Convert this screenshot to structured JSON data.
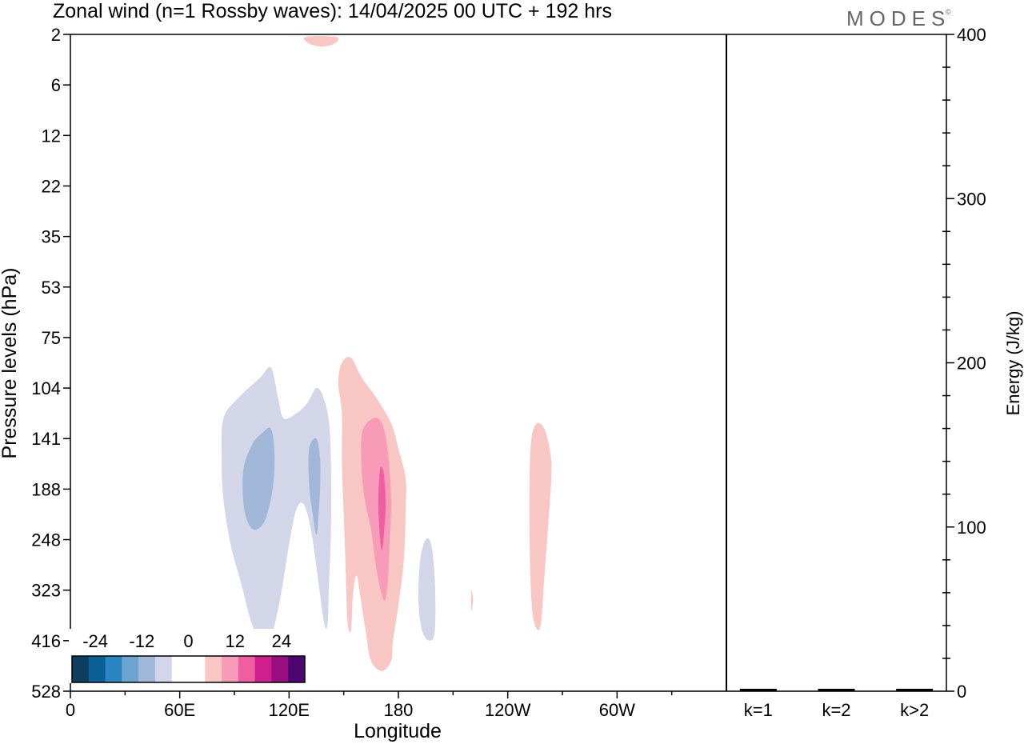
{
  "title": "Zonal wind (n=1 Rossby waves):  14/04/2025  00 UTC  + 192 hrs",
  "logo": "MODES",
  "logo_mark": "©",
  "chart_data": [
    {
      "type": "heatmap",
      "xlabel": "Longitude",
      "ylabel": "Pressure levels (hPa)",
      "x_ticks": [
        {
          "lon": 0,
          "label": "0"
        },
        {
          "lon": 60,
          "label": "60E"
        },
        {
          "lon": 120,
          "label": "120E"
        },
        {
          "lon": 180,
          "label": "180"
        },
        {
          "lon": 240,
          "label": "120W"
        },
        {
          "lon": 300,
          "label": "60W"
        }
      ],
      "xlim": [
        0,
        360
      ],
      "y_levels": [
        2,
        6,
        12,
        22,
        35,
        53,
        75,
        104,
        141,
        188,
        248,
        323,
        416,
        528
      ],
      "y_scale": "level-index",
      "colorbar": {
        "tick_labels": [
          "-24",
          "-12",
          "0",
          "12",
          "24"
        ],
        "tick_values": [
          -24,
          -12,
          0,
          12,
          24
        ],
        "bounds": [
          -30,
          30
        ],
        "colors": [
          "#0d3e5e",
          "#0a5f96",
          "#2a86c0",
          "#6aa4cf",
          "#a0b7d8",
          "#d3d5e8",
          "#ffffff",
          "#ffffff",
          "#f9c7c3",
          "#f79bb8",
          "#ef5fa0",
          "#cf1f8e",
          "#990e7e",
          "#4e0572"
        ],
        "placement": "bottom-left"
      },
      "regions": [
        {
          "name": "neg-outer-main",
          "value": -3,
          "color": "#d3d5e8",
          "outline": [
            [
              84,
              7.6
            ],
            [
              92,
              7.2
            ],
            [
              104,
              6.8
            ],
            [
              110,
              6.6
            ],
            [
              114,
              7.2
            ],
            [
              117,
              7.6
            ],
            [
              124,
              7.5
            ],
            [
              130,
              7.3
            ],
            [
              135,
              7.0
            ],
            [
              139,
              7.2
            ],
            [
              142,
              7.7
            ],
            [
              143,
              8.5
            ],
            [
              143,
              9.8
            ],
            [
              142,
              10.8
            ],
            [
              141,
              11.7
            ],
            [
              139,
              11.6
            ],
            [
              136,
              10.8
            ],
            [
              132,
              9.8
            ],
            [
              128,
              9.3
            ],
            [
              124,
              9.4
            ],
            [
              120,
              10.1
            ],
            [
              115,
              11.2
            ],
            [
              110,
              11.9
            ],
            [
              104,
              12.0
            ],
            [
              99,
              11.6
            ],
            [
              94,
              10.9
            ],
            [
              88,
              10.1
            ],
            [
              84,
              9.2
            ],
            [
              83,
              8.4
            ]
          ]
        },
        {
          "name": "neg-inner-a",
          "value": -9,
          "color": "#a0b7d8",
          "outline": [
            [
              95,
              8.6
            ],
            [
              100,
              8.1
            ],
            [
              105,
              7.9
            ],
            [
              110,
              7.8
            ],
            [
              112,
              8.3
            ],
            [
              111,
              9.0
            ],
            [
              107,
              9.6
            ],
            [
              102,
              9.8
            ],
            [
              98,
              9.7
            ],
            [
              95,
              9.3
            ]
          ]
        },
        {
          "name": "neg-inner-b",
          "value": -9,
          "color": "#a0b7d8",
          "outline": [
            [
              131,
              8.2
            ],
            [
              135,
              8.0
            ],
            [
              137,
              8.4
            ],
            [
              137,
              9.0
            ],
            [
              136,
              9.6
            ],
            [
              135,
              9.9
            ],
            [
              133,
              9.5
            ],
            [
              131,
              8.9
            ]
          ]
        },
        {
          "name": "neg-outer-small",
          "value": -3,
          "color": "#d3d5e8",
          "outline": [
            [
              192,
              10.4
            ],
            [
              195,
              10.0
            ],
            [
              198,
              10.1
            ],
            [
              200,
              10.8
            ],
            [
              200,
              11.8
            ],
            [
              197,
              12.0
            ],
            [
              193,
              11.8
            ],
            [
              191,
              11.2
            ]
          ]
        },
        {
          "name": "pos-outer-main",
          "value": 3,
          "color": "#f9c7c3",
          "outline": [
            [
              149,
              6.5
            ],
            [
              154,
              6.4
            ],
            [
              160,
              6.8
            ],
            [
              168,
              7.2
            ],
            [
              176,
              7.7
            ],
            [
              180,
              8.2
            ],
            [
              184,
              8.8
            ],
            [
              184,
              9.4
            ],
            [
              183,
              10.4
            ],
            [
              180,
              11.3
            ],
            [
              177,
              12.0
            ],
            [
              176,
              12.4
            ],
            [
              171,
              12.6
            ],
            [
              165,
              12.4
            ],
            [
              162,
              11.8
            ],
            [
              159,
              11.1
            ],
            [
              157,
              10.7
            ],
            [
              155,
              11.1
            ],
            [
              154,
              11.8
            ],
            [
              152,
              11.6
            ],
            [
              151,
              10.5
            ],
            [
              150,
              9.5
            ],
            [
              149,
              8.5
            ],
            [
              149,
              7.5
            ],
            [
              147,
              6.9
            ]
          ]
        },
        {
          "name": "pos-mid",
          "value": 9,
          "color": "#f79bb8",
          "outline": [
            [
              160,
              7.9
            ],
            [
              166,
              7.6
            ],
            [
              171,
              7.7
            ],
            [
              174,
              8.2
            ],
            [
              176,
              9.2
            ],
            [
              175,
              10.2
            ],
            [
              174,
              10.9
            ],
            [
              172,
              11.2
            ],
            [
              168,
              10.6
            ],
            [
              165,
              9.8
            ],
            [
              162,
              9.3
            ],
            [
              160,
              8.7
            ]
          ]
        },
        {
          "name": "pos-core",
          "value": 15,
          "color": "#ef5fa0",
          "outline": [
            [
              170,
              8.6
            ],
            [
              172,
              8.7
            ],
            [
              173,
              9.3
            ],
            [
              172,
              9.9
            ],
            [
              171,
              10.2
            ],
            [
              170,
              10.0
            ],
            [
              169,
              9.3
            ]
          ]
        },
        {
          "name": "pos-top",
          "value": 3,
          "color": "#f9c7c3",
          "outline": [
            [
              129,
              0.05
            ],
            [
              146,
              0.05
            ],
            [
              145,
              0.18
            ],
            [
              138,
              0.24
            ],
            [
              131,
              0.18
            ]
          ]
        },
        {
          "name": "pos-east",
          "value": 3,
          "color": "#f9c7c3",
          "outline": [
            [
              253,
              8.0
            ],
            [
              256,
              7.7
            ],
            [
              260,
              7.8
            ],
            [
              263,
              8.2
            ],
            [
              264,
              8.7
            ],
            [
              262,
              9.8
            ],
            [
              260,
              10.8
            ],
            [
              258,
              11.7
            ],
            [
              255,
              11.7
            ],
            [
              253,
              11.2
            ],
            [
              252,
              10.0
            ],
            [
              252,
              8.8
            ]
          ]
        },
        {
          "name": "pos-speck",
          "value": 3,
          "color": "#f9c7c3",
          "outline": [
            [
              220,
              11.0
            ],
            [
              221,
              11.2
            ],
            [
              220,
              11.4
            ]
          ]
        }
      ]
    },
    {
      "type": "bar",
      "ylabel": "Energy (J/kg)",
      "categories": [
        "k=1",
        "k=2",
        "k>2"
      ],
      "values": [
        1,
        1,
        1
      ],
      "ylim": [
        0,
        400
      ],
      "y_ticks": [
        0,
        100,
        200,
        300,
        400
      ]
    }
  ]
}
